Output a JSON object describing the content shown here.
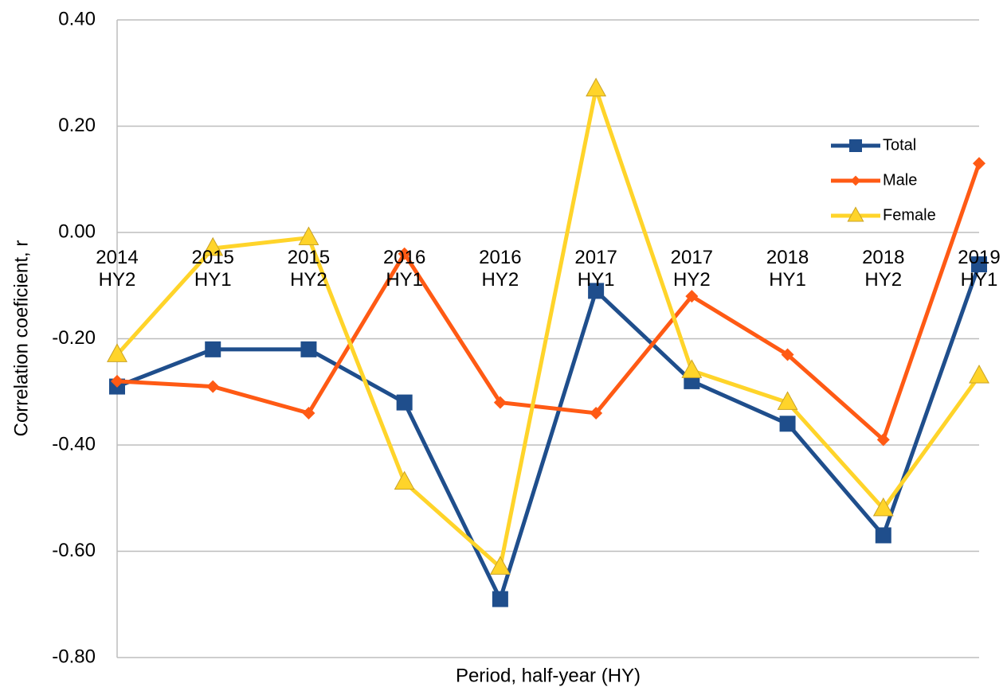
{
  "chart_data": {
    "type": "line",
    "x_label": "Period, half-year (HY)",
    "y_label": "Correlation coeficient, r",
    "categories": [
      "2014 HY2",
      "2015 HY1",
      "2015 HY2",
      "2016 HY1",
      "2016 HY2",
      "2017 HY1",
      "2017 HY2",
      "2018 HY1",
      "2018 HY2",
      "2019 HY1"
    ],
    "series": [
      {
        "name": "Total",
        "color": "#1f4e8c",
        "marker": "square",
        "values": [
          -0.29,
          -0.22,
          -0.22,
          -0.32,
          -0.69,
          -0.11,
          -0.28,
          -0.36,
          -0.57,
          -0.06
        ]
      },
      {
        "name": "Male",
        "color": "#ff5a14",
        "marker": "diamond",
        "values": [
          -0.28,
          -0.29,
          -0.34,
          -0.04,
          -0.32,
          -0.34,
          -0.12,
          -0.23,
          -0.39,
          0.13
        ]
      },
      {
        "name": "Female",
        "color": "#ffd42a",
        "marker": "triangle",
        "values": [
          -0.23,
          -0.03,
          -0.01,
          -0.47,
          -0.63,
          0.27,
          -0.26,
          -0.32,
          -0.52,
          -0.27
        ]
      }
    ],
    "ylim": [
      -0.8,
      0.4
    ],
    "yticks": [
      {
        "value": 0.4,
        "label": "0.40"
      },
      {
        "value": 0.2,
        "label": "0.20"
      },
      {
        "value": 0,
        "label": "0.00"
      },
      {
        "value": -0.2,
        "label": "-0.20"
      },
      {
        "value": -0.4,
        "label": "-0.40"
      },
      {
        "value": -0.6,
        "label": "-0.60"
      },
      {
        "value": -0.8,
        "label": "-0.80"
      }
    ],
    "grid": true,
    "legend": "right"
  }
}
